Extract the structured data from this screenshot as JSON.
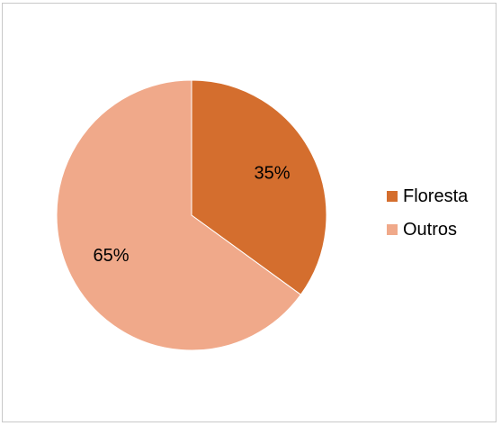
{
  "chart_data": {
    "type": "pie",
    "title": "",
    "categories": [
      "Floresta",
      "Outros"
    ],
    "values": [
      35,
      65
    ],
    "value_labels": [
      "35%",
      "65%"
    ],
    "colors": [
      "#D46E2E",
      "#F0A98A"
    ],
    "legend_position": "right",
    "start_angle_deg": 0,
    "direction": "clockwise"
  },
  "legend": {
    "items": [
      {
        "label": "Floresta",
        "color": "#D46E2E"
      },
      {
        "label": "Outros",
        "color": "#F0A98A"
      }
    ]
  }
}
